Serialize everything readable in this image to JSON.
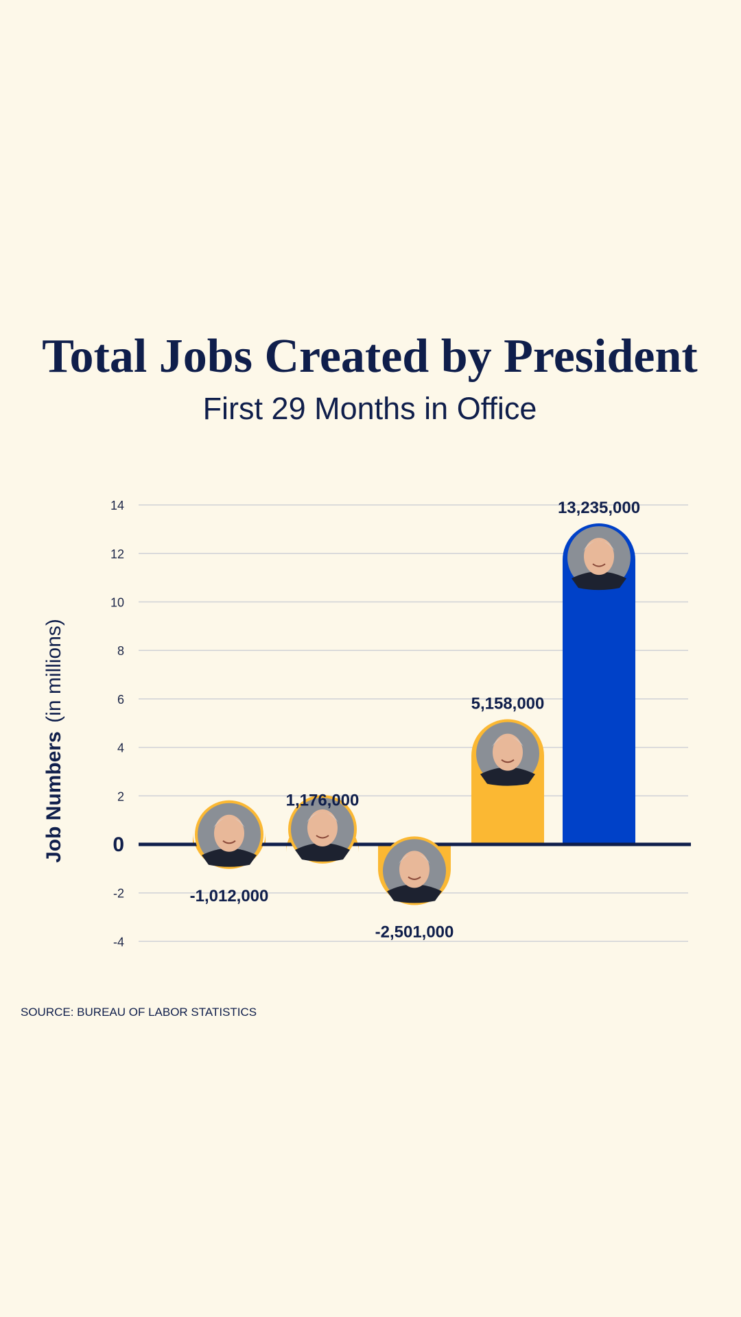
{
  "title": "Total Jobs Created by President",
  "subtitle": "First 29 Months in Office",
  "source": "SOURCE: BUREAU OF LABOR STATISTICS",
  "colors": {
    "background": "#fdf8e9",
    "gold": "#fbb833",
    "blue": "#0041c8",
    "navy": "#0f1e4b",
    "grid": "#cfd1d6"
  },
  "chart_data": {
    "type": "bar",
    "ylabel_bold": "Job Numbers",
    "ylabel_light": "(in millions)",
    "ylim": [
      -4,
      14
    ],
    "yticks": [
      -4,
      -2,
      0,
      2,
      4,
      6,
      8,
      10,
      12,
      14
    ],
    "grid": true,
    "bars": [
      {
        "value": -1.012,
        "label": "-1,012,000",
        "color": "#fbb833",
        "icon": "portrait-icon"
      },
      {
        "value": 1.176,
        "label": "1,176,000",
        "color": "#fbb833",
        "icon": "portrait-icon"
      },
      {
        "value": -2.501,
        "label": "-2,501,000",
        "color": "#fbb833",
        "icon": "portrait-icon"
      },
      {
        "value": 5.158,
        "label": "5,158,000",
        "color": "#fbb833",
        "icon": "portrait-icon"
      },
      {
        "value": 13.235,
        "label": "13,235,000",
        "color": "#0041c8",
        "icon": "portrait-icon"
      }
    ]
  }
}
